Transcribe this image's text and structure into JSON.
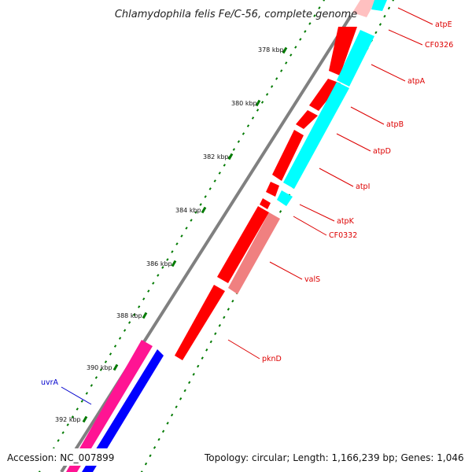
{
  "title": "Chlamydophila felis Fe/C-56, complete genome",
  "footer": {
    "accession": "Accession: NC_007899",
    "summary": "Topology: circular; Length: 1,166,239 bp; Genes: 1,046"
  },
  "colors": {
    "forward_gene": "#ff0000",
    "reverse_gene": "#00ffff",
    "forward_highlight": "#ff1493",
    "reverse_highlight": "#0000ff",
    "rrna_like": "#f08080",
    "backbone": "#808080",
    "gc_dots": "#007a00",
    "label_red": "#dd0000",
    "label_blue": "#0000cc"
  },
  "ticks": [
    {
      "label": "378 kbp"
    },
    {
      "label": "380 kbp"
    },
    {
      "label": "382 kbp"
    },
    {
      "label": "384 kbp"
    },
    {
      "label": "386 kbp"
    },
    {
      "label": "388 kbp"
    },
    {
      "label": "390 kbp"
    },
    {
      "label": "392 kbp"
    }
  ],
  "genes": [
    {
      "name": "atpE",
      "color": "red"
    },
    {
      "name": "CF0326",
      "color": "red"
    },
    {
      "name": "atpA",
      "color": "red"
    },
    {
      "name": "atpB",
      "color": "red"
    },
    {
      "name": "atpD",
      "color": "red"
    },
    {
      "name": "atpI",
      "color": "red"
    },
    {
      "name": "atpK",
      "color": "red"
    },
    {
      "name": "CF0332",
      "color": "red"
    },
    {
      "name": "valS",
      "color": "red"
    },
    {
      "name": "pknD",
      "color": "red"
    },
    {
      "name": "uvrA",
      "color": "blue"
    }
  ]
}
